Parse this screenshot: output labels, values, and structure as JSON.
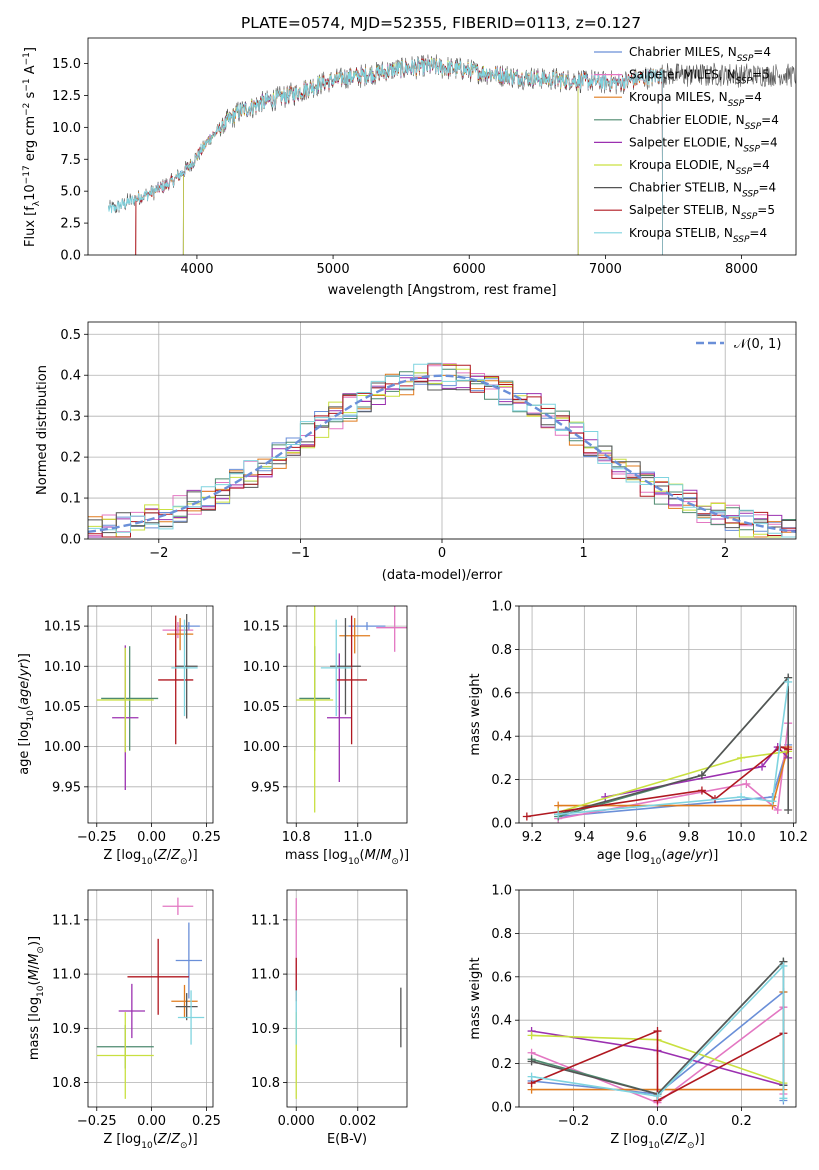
{
  "chart_data": [
    {
      "type": "line",
      "title": "PLATE=0574, MJD=52355, FIBERID=0113, z=0.127",
      "xlabel": "wavelength [Angstrom, rest frame]",
      "ylabel": "Flux [f_λ10^-17 erg cm^-2 s^-1 A^-1]",
      "xlim": [
        3200,
        8400
      ],
      "ylim": [
        0,
        17
      ],
      "xticks": [
        4000,
        5000,
        6000,
        7000,
        8000
      ],
      "yticks": [
        0.0,
        2.5,
        5.0,
        7.5,
        10.0,
        12.5,
        15.0
      ],
      "legend_position": "top-right",
      "spectrum_shape": {
        "x": [
          3380,
          3500,
          3650,
          3800,
          3950,
          4100,
          4300,
          4500,
          4700,
          4900,
          5100,
          5300,
          5500,
          5700,
          5900,
          6100,
          6300,
          6500,
          6700,
          6900,
          7100,
          7300,
          7420
        ],
        "y": [
          3.6,
          4.2,
          4.8,
          5.6,
          7.0,
          9.2,
          11.2,
          12.0,
          12.6,
          13.4,
          13.9,
          14.2,
          14.6,
          14.8,
          14.6,
          14.3,
          14.0,
          13.8,
          13.7,
          13.6,
          13.5,
          13.9,
          14.1
        ]
      },
      "series": [
        {
          "name": "Chabrier MILES",
          "nssp": "4",
          "color": "#6a8fd8",
          "cut": [
            3550,
            7420
          ]
        },
        {
          "name": "Salpeter MILES",
          "nssp": "5",
          "color": "#e377c2",
          "cut": [
            3550,
            7420
          ]
        },
        {
          "name": "Kroupa MILES",
          "nssp": "4",
          "color": "#e07b1e",
          "cut": [
            3550,
            7420
          ]
        },
        {
          "name": "Chabrier ELODIE",
          "nssp": "4",
          "color": "#4e8a6f",
          "cut": [
            3900,
            6800
          ]
        },
        {
          "name": "Salpeter ELODIE",
          "nssp": "4",
          "color": "#9b30b0",
          "cut": [
            3900,
            6800
          ]
        },
        {
          "name": "Kroupa ELODIE",
          "nssp": "4",
          "color": "#c9e040",
          "cut": [
            3900,
            6800
          ]
        },
        {
          "name": "Chabrier STELIB",
          "nssp": "4",
          "color": "#555555",
          "cut": [
            3350,
            8400
          ]
        },
        {
          "name": "Salpeter STELIB",
          "nssp": "5",
          "color": "#b01820",
          "cut": [
            3550,
            7420
          ]
        },
        {
          "name": "Kroupa STELIB",
          "nssp": "4",
          "color": "#7fd4df",
          "cut": [
            3350,
            7420
          ]
        }
      ]
    },
    {
      "type": "line",
      "xlabel": "(data-model)/error",
      "ylabel": "Normed distribution",
      "xlim": [
        -2.5,
        2.5
      ],
      "ylim": [
        0,
        0.53
      ],
      "xticks": [
        -2,
        -1,
        0,
        1,
        2
      ],
      "yticks": [
        0.0,
        0.1,
        0.2,
        0.3,
        0.4,
        0.5
      ],
      "grid": true,
      "legend": "𝒩(0, 1)",
      "legend_position": "top-right",
      "gaussian_color": "#6a8fd8"
    },
    {
      "type": "scatter",
      "xlabel": "Z [log10(Z/Z☉)]",
      "ylabel": "age  [log10(age/yr)]",
      "xlim": [
        -0.29,
        0.28
      ],
      "ylim": [
        9.905,
        10.175
      ],
      "xticks": [
        -0.25,
        0.0,
        0.25
      ],
      "xticklabels": [
        "−0.25",
        "0.00",
        "0.25"
      ],
      "yticks": [
        9.95,
        10.0,
        10.05,
        10.1,
        10.15
      ],
      "grid": true,
      "points": [
        {
          "color": "#6a8fd8",
          "x": 0.17,
          "xerr": 0.05,
          "y": 10.15,
          "yerr": 0.005
        },
        {
          "color": "#e377c2",
          "x": 0.12,
          "xerr": 0.07,
          "y": 10.145,
          "yerr": 0.01
        },
        {
          "color": "#e07b1e",
          "x": 0.13,
          "xerr": 0.06,
          "y": 10.14,
          "yerr": 0.02
        },
        {
          "color": "#4e8a6f",
          "x": -0.1,
          "xerr": 0.13,
          "y": 10.06,
          "yerr": 0.065
        },
        {
          "color": "#9b30b0",
          "x": -0.12,
          "xerr": 0.06,
          "y": 10.036,
          "yerr": 0.09
        },
        {
          "color": "#c9e040",
          "x": -0.12,
          "xerr": 0.13,
          "y": 10.058,
          "yerr": 0.065
        },
        {
          "color": "#555555",
          "x": 0.16,
          "xerr": 0.05,
          "y": 10.1,
          "yerr": 0.065
        },
        {
          "color": "#b01820",
          "x": 0.11,
          "xerr": 0.08,
          "y": 10.083,
          "yerr": 0.08
        },
        {
          "color": "#7fd4df",
          "x": 0.15,
          "xerr": 0.06,
          "y": 10.098,
          "yerr": 0.06
        }
      ]
    },
    {
      "type": "scatter",
      "xlabel": "mass [log10(M/M☉)]",
      "xlim": [
        10.77,
        11.16
      ],
      "ylim": [
        9.905,
        10.175
      ],
      "xticks": [
        10.8,
        11.0
      ],
      "yticks": [
        9.95,
        10.0,
        10.05,
        10.1,
        10.15
      ],
      "grid": true,
      "points": [
        {
          "color": "#6a8fd8",
          "x": 11.03,
          "xerr": 0.06,
          "y": 10.15,
          "yerr": 0.005
        },
        {
          "color": "#e377c2",
          "x": 11.12,
          "xerr": 0.06,
          "y": 10.148,
          "yerr": 0.03
        },
        {
          "color": "#e07b1e",
          "x": 10.99,
          "xerr": 0.05,
          "y": 10.138,
          "yerr": 0.022
        },
        {
          "color": "#4e8a6f",
          "x": 10.86,
          "xerr": 0.05,
          "y": 10.06,
          "yerr": 0.065
        },
        {
          "color": "#9b30b0",
          "x": 10.94,
          "xerr": 0.04,
          "y": 10.036,
          "yerr": 0.08
        },
        {
          "color": "#c9e040",
          "x": 10.86,
          "xerr": 0.06,
          "y": 10.058,
          "yerr": 0.14
        },
        {
          "color": "#555555",
          "x": 10.96,
          "xerr": 0.05,
          "y": 10.1,
          "yerr": 0.06
        },
        {
          "color": "#b01820",
          "x": 10.98,
          "xerr": 0.05,
          "y": 10.083,
          "yerr": 0.08
        },
        {
          "color": "#7fd4df",
          "x": 10.93,
          "xerr": 0.05,
          "y": 10.098,
          "yerr": 0.06
        }
      ]
    },
    {
      "type": "line",
      "xlabel": "age  [log10(age/yr)]",
      "ylabel": "mass weight",
      "xlim": [
        9.15,
        10.21
      ],
      "ylim": [
        0,
        1
      ],
      "xticks": [
        9.2,
        9.4,
        9.6,
        9.8,
        10.0,
        10.2
      ],
      "yticks": [
        0.0,
        0.2,
        0.4,
        0.6,
        0.8,
        1.0
      ],
      "grid": true,
      "series": [
        {
          "color": "#6a8fd8",
          "x": [
            9.3,
            10.12,
            10.18
          ],
          "y": [
            0.03,
            0.12,
            0.36
          ]
        },
        {
          "color": "#e377c2",
          "x": [
            9.3,
            10.02,
            10.14,
            10.18
          ],
          "y": [
            0.02,
            0.18,
            0.06,
            0.46
          ]
        },
        {
          "color": "#e07b1e",
          "x": [
            9.3,
            10.12,
            10.18
          ],
          "y": [
            0.08,
            0.08,
            0.35
          ]
        },
        {
          "color": "#4e8a6f",
          "x": [
            9.3,
            9.85,
            10.18
          ],
          "y": [
            0.03,
            0.22,
            0.67
          ]
        },
        {
          "color": "#9b30b0",
          "x": [
            9.48,
            10.08,
            10.14,
            10.18
          ],
          "y": [
            0.12,
            0.26,
            0.35,
            0.3
          ]
        },
        {
          "color": "#c9e040",
          "x": [
            9.3,
            10.0,
            10.18
          ],
          "y": [
            0.05,
            0.3,
            0.33
          ]
        },
        {
          "color": "#555555",
          "x": [
            9.3,
            9.85,
            10.18,
            10.18
          ],
          "y": [
            0.04,
            0.22,
            0.67,
            0.06
          ]
        },
        {
          "color": "#b01820",
          "x": [
            9.18,
            9.85,
            9.9,
            10.15,
            10.18
          ],
          "y": [
            0.03,
            0.15,
            0.11,
            0.35,
            0.34
          ]
        },
        {
          "color": "#7fd4df",
          "x": [
            9.3,
            10.0,
            10.12,
            10.18
          ],
          "y": [
            0.04,
            0.12,
            0.1,
            0.65
          ]
        }
      ]
    },
    {
      "type": "scatter",
      "xlabel": "Z [log10(Z/Z☉)]",
      "ylabel": "mass [log10(M/M☉)]",
      "xlim": [
        -0.29,
        0.28
      ],
      "ylim": [
        10.755,
        11.155
      ],
      "xticks": [
        -0.25,
        0.0,
        0.25
      ],
      "xticklabels": [
        "−0.25",
        "0.00",
        "0.25"
      ],
      "yticks": [
        10.8,
        10.9,
        11.0,
        11.1
      ],
      "grid": true,
      "points": [
        {
          "color": "#6a8fd8",
          "x": 0.17,
          "xerr": 0.06,
          "y": 11.025,
          "yerr": 0.07
        },
        {
          "color": "#e377c2",
          "x": 0.12,
          "xerr": 0.07,
          "y": 11.125,
          "yerr": 0.016
        },
        {
          "color": "#e07b1e",
          "x": 0.15,
          "xerr": 0.06,
          "y": 10.95,
          "yerr": 0.03
        },
        {
          "color": "#4e8a6f",
          "x": -0.12,
          "xerr": 0.13,
          "y": 10.866,
          "yerr": 0.04
        },
        {
          "color": "#9b30b0",
          "x": -0.09,
          "xerr": 0.06,
          "y": 10.932,
          "yerr": 0.05
        },
        {
          "color": "#c9e040",
          "x": -0.12,
          "xerr": 0.13,
          "y": 10.85,
          "yerr": 0.08
        },
        {
          "color": "#555555",
          "x": 0.16,
          "xerr": 0.05,
          "y": 10.94,
          "yerr": 0.025
        },
        {
          "color": "#b01820",
          "x": 0.03,
          "xerr": 0.14,
          "y": 10.995,
          "yerr": 0.07
        },
        {
          "color": "#7fd4df",
          "x": 0.18,
          "xerr": 0.06,
          "y": 10.92,
          "yerr": 0.05
        }
      ]
    },
    {
      "type": "scatter",
      "xlabel": "E(B-V)",
      "xlim": [
        -0.0003,
        0.0036
      ],
      "ylim": [
        10.755,
        11.155
      ],
      "xticks": [
        0.0,
        0.002
      ],
      "xticklabels": [
        "0.000",
        "0.002"
      ],
      "yticks": [
        10.8,
        10.9,
        11.0,
        11.1
      ],
      "grid": true,
      "points": [
        {
          "color": "#e377c2",
          "x": 0.0,
          "y": 11.05,
          "yerr": 0.09
        },
        {
          "color": "#b01820",
          "x": 0.0,
          "y": 10.99,
          "yerr": 0.04
        },
        {
          "color": "#c9e040",
          "x": 0.0,
          "y": 10.85,
          "yerr": 0.08
        },
        {
          "color": "#7fd4df",
          "x": 0.0,
          "y": 10.92,
          "yerr": 0.05
        },
        {
          "color": "#555555",
          "x": 0.0034,
          "y": 10.92,
          "yerr": 0.055
        }
      ]
    },
    {
      "type": "line",
      "xlabel": "Z [log10(Z/Z☉)]",
      "ylabel": "mass weight",
      "xlim": [
        -0.33,
        0.33
      ],
      "ylim": [
        0,
        1
      ],
      "xticks": [
        -0.2,
        0.0,
        0.2
      ],
      "xticklabels": [
        "−0.2",
        "0.0",
        "0.2"
      ],
      "yticks": [
        0.0,
        0.2,
        0.4,
        0.6,
        0.8,
        1.0
      ],
      "grid": true,
      "series": [
        {
          "color": "#6a8fd8",
          "x": [
            -0.3,
            0.0,
            0.3,
            0.3
          ],
          "y": [
            0.12,
            0.06,
            0.53,
            0.03
          ]
        },
        {
          "color": "#e377c2",
          "x": [
            -0.3,
            0.0,
            0.3,
            0.3
          ],
          "y": [
            0.25,
            0.02,
            0.46,
            0.06
          ]
        },
        {
          "color": "#e07b1e",
          "x": [
            -0.3,
            0.0,
            0.3,
            0.3
          ],
          "y": [
            0.08,
            0.08,
            0.08,
            0.53
          ]
        },
        {
          "color": "#4e8a6f",
          "x": [
            -0.3,
            0.0,
            0.3
          ],
          "y": [
            0.22,
            0.06,
            0.67
          ]
        },
        {
          "color": "#9b30b0",
          "x": [
            -0.3,
            0.0,
            0.3
          ],
          "y": [
            0.35,
            0.26,
            0.1
          ]
        },
        {
          "color": "#c9e040",
          "x": [
            -0.3,
            0.0,
            0.3
          ],
          "y": [
            0.33,
            0.31,
            0.11
          ]
        },
        {
          "color": "#555555",
          "x": [
            -0.3,
            0.0,
            0.3,
            0.3
          ],
          "y": [
            0.21,
            0.06,
            0.67,
            0.1
          ]
        },
        {
          "color": "#b01820",
          "x": [
            -0.3,
            0.0,
            0.0,
            0.3
          ],
          "y": [
            0.11,
            0.35,
            0.03,
            0.34
          ]
        },
        {
          "color": "#7fd4df",
          "x": [
            -0.3,
            0.0,
            0.3,
            0.3
          ],
          "y": [
            0.14,
            0.05,
            0.65,
            0.04
          ]
        }
      ]
    }
  ]
}
